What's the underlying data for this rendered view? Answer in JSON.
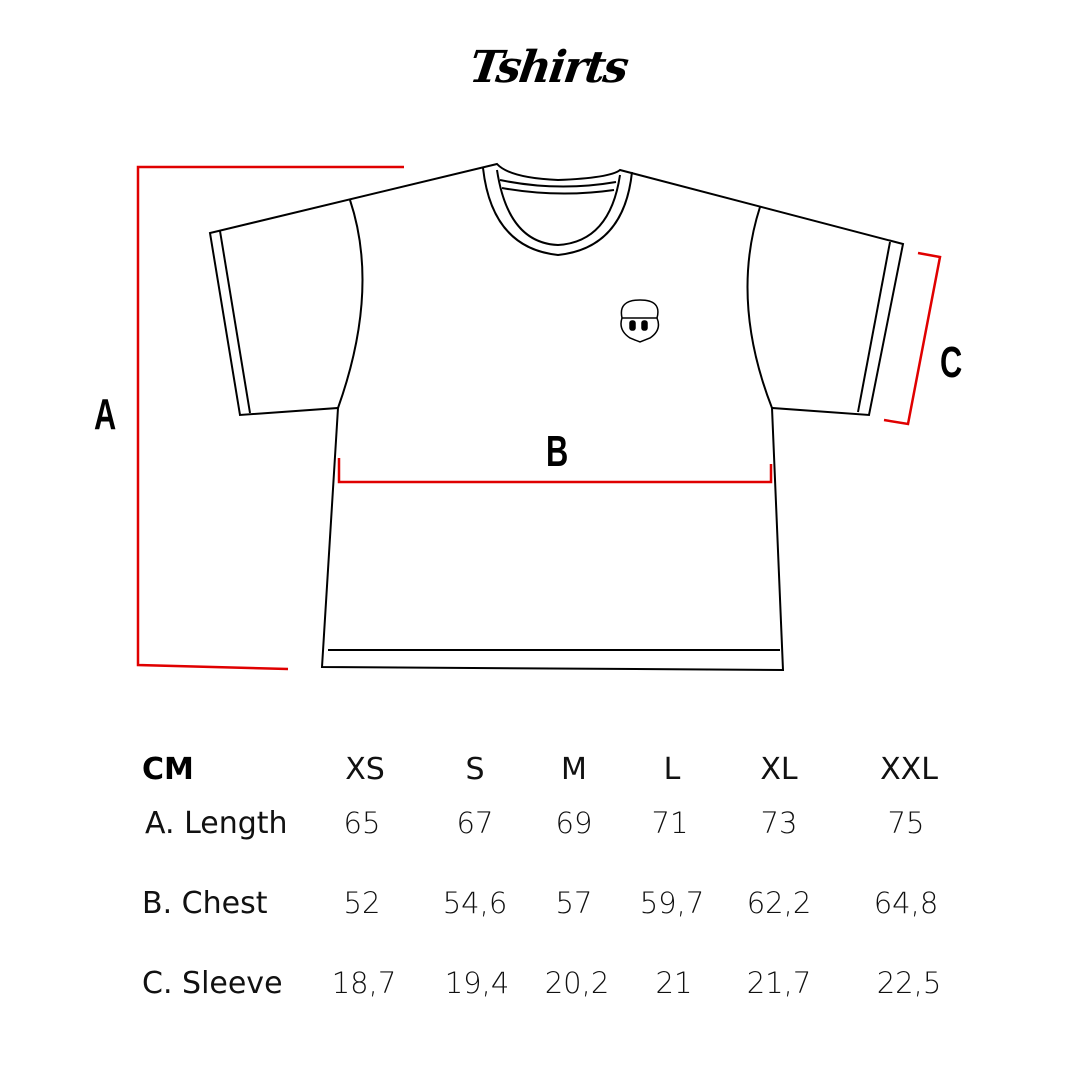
{
  "logo": {
    "text": "Tshirts"
  },
  "labels": {
    "a": "A",
    "b": "B",
    "c": "C"
  },
  "colors": {
    "measure_line": "#e00000",
    "outline": "#000000"
  },
  "table": {
    "unit": "CM",
    "sizes": [
      "XS",
      "S",
      "M",
      "L",
      "XL",
      "XXL"
    ],
    "rows": [
      {
        "label": "A. Length",
        "values": [
          "65",
          "67",
          "69",
          "71",
          "73",
          "75"
        ]
      },
      {
        "label": "B. Chest",
        "values": [
          "52",
          "54,6",
          "57",
          "59,7",
          "62,2",
          "64,8"
        ]
      },
      {
        "label": "C. Sleeve",
        "values": [
          "18,7",
          "19,4",
          "20,2",
          "21",
          "21,7",
          "22,5"
        ]
      }
    ]
  }
}
